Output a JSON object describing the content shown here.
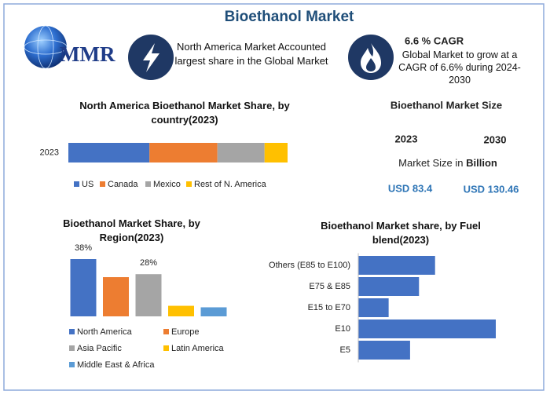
{
  "title": "Bioethanol Market",
  "logo": "MMR",
  "highlights": [
    {
      "text": "North America Market Accounted largest share in the Global Market"
    },
    {
      "heading": "6.6 % CAGR",
      "text": "Global Market to grow at a CAGR of 6.6% during 2024-2030"
    }
  ],
  "market_size": {
    "title": "Bioethanol Market Size",
    "years": [
      "2023",
      "2030"
    ],
    "unit_label": "Market Size in",
    "unit": "Billion",
    "values": [
      "USD 83.4",
      "USD 130.46"
    ]
  },
  "chart_data": [
    {
      "type": "stacked_bar",
      "title": "North America Bioethanol Market Share, by country(2023)",
      "categories": [
        "2023"
      ],
      "series": [
        {
          "name": "US",
          "color": "#4472c4",
          "values": [
            37
          ]
        },
        {
          "name": "Canada",
          "color": "#ed7d31",
          "values": [
            31
          ]
        },
        {
          "name": "Mexico",
          "color": "#a5a5a5",
          "values": [
            21.5
          ]
        },
        {
          "name": "Rest of N. America",
          "color": "#ffc000",
          "values": [
            10.5
          ]
        }
      ],
      "legend": "bottom"
    },
    {
      "type": "bar",
      "title": "Bioethanol Market Share, by Region(2023)",
      "categories": [
        "North America",
        "Europe",
        "Asia Pacific",
        "Latin America",
        "Middle East & Africa"
      ],
      "values": [
        38,
        26,
        28,
        7,
        6
      ],
      "value_labels": [
        "38%",
        null,
        "28%",
        null,
        null
      ],
      "colors": [
        "#4472c4",
        "#ed7d31",
        "#a5a5a5",
        "#ffc000",
        "#5b9bd5"
      ],
      "legend": "bottom"
    },
    {
      "type": "hbar",
      "title": "Bioethanol Market share, by Fuel blend(2023)",
      "categories": [
        "Others (E85 to E100)",
        "E75 & E85",
        "E15 to E70",
        "E10",
        "E5"
      ],
      "values": [
        21.5,
        17,
        8.5,
        38.5,
        14.5
      ],
      "color": "#4472c4"
    }
  ]
}
